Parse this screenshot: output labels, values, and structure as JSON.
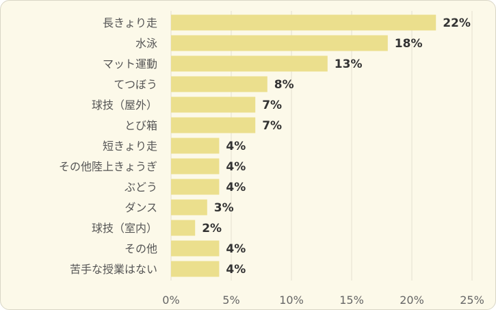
{
  "chart_data": {
    "type": "bar",
    "orientation": "horizontal",
    "title": "",
    "xlabel": "",
    "ylabel": "",
    "categories": [
      "長きょり走",
      "水泳",
      "マット運動",
      "てつぼう",
      "球技（屋外）",
      "とび箱",
      "短きょり走",
      "その他陸上きょうぎ",
      "ぶどう",
      "ダンス",
      "球技（室内）",
      "その他",
      "苦手な授業はない"
    ],
    "values": [
      22,
      18,
      13,
      8,
      7,
      7,
      4,
      4,
      4,
      3,
      2,
      4,
      4
    ],
    "value_labels": [
      "22%",
      "18%",
      "13%",
      "8%",
      "7%",
      "7%",
      "4%",
      "4%",
      "4%",
      "3%",
      "2%",
      "4%",
      "4%"
    ],
    "xlim": [
      0,
      25
    ],
    "x_ticks": [
      "0%",
      "5%",
      "10%",
      "15%",
      "20%",
      "25%"
    ],
    "grid": true,
    "legend": "none",
    "colors": {
      "bar": "#ebdf8d",
      "background": "#fcf9e9",
      "grid": "#e3e0d0"
    }
  }
}
